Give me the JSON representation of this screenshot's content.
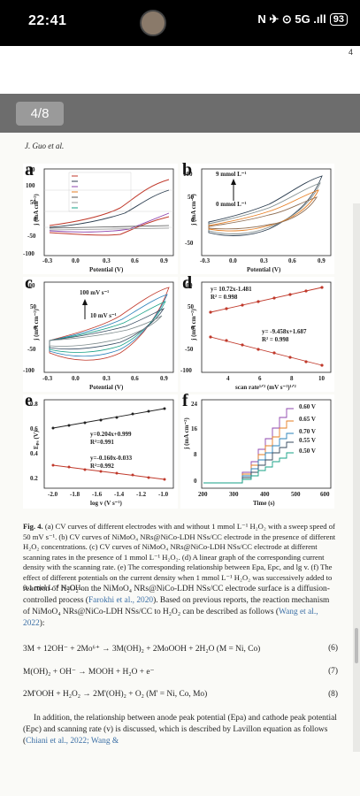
{
  "status": {
    "time": "22:41",
    "icons": "N ✈ ⊙ 5G .ıll",
    "battery": "93"
  },
  "viewer": {
    "corner": "4",
    "page_counter": "4/8"
  },
  "running_head": "J. Guo et al.",
  "panels": {
    "a": {
      "label": "a",
      "xlabel": "Potential (V)",
      "ylabel": "j (mA cm⁻²)",
      "yticks": [
        "150",
        "100",
        "50",
        "0",
        "-50",
        "-100"
      ],
      "xticks": [
        "-0.3",
        "0.0",
        "0.3",
        "0.6",
        "0.9"
      ]
    },
    "b": {
      "label": "b",
      "xlabel": "Potential (V)",
      "ylabel": "j (mA cm⁻²)",
      "yticks": [
        "100",
        "50",
        "0",
        "-50"
      ],
      "xticks": [
        "-0.3",
        "0.0",
        "0.3",
        "0.6",
        "0.9"
      ],
      "ann1": "9 mmol L⁻¹",
      "ann2": "0 mmol L⁻¹"
    },
    "c": {
      "label": "c",
      "xlabel": "Potential (V)",
      "ylabel": "j (mA cm⁻²)",
      "yticks": [
        "100",
        "50",
        "0",
        "-50",
        "-100"
      ],
      "xticks": [
        "-0.3",
        "0.0",
        "0.3",
        "0.6",
        "0.9"
      ],
      "ann1": "100 mV s⁻¹",
      "ann2": "10 mV s⁻¹"
    },
    "d": {
      "label": "d",
      "xlabel": "scan rate¹ᐟ² (mV s⁻¹)¹ᐟ²",
      "ylabel": "j (mA cm⁻²)",
      "yticks": [
        "100",
        "50",
        "0",
        "-50",
        "-100"
      ],
      "xticks": [
        "4",
        "6",
        "8",
        "10"
      ],
      "eq1": "y= 10.72x-1.481",
      "r1": "R² = 0.998",
      "eq2": "y= -9.458x+1.687",
      "r2": "R² = 0.998"
    },
    "e": {
      "label": "e",
      "xlabel": "log v (V s⁻¹)",
      "ylabel": "Eₚₐ (V)",
      "yticks": [
        "0.8",
        "0.6",
        "0.4",
        "0.2"
      ],
      "xticks": [
        "-2.0",
        "-1.8",
        "-1.6",
        "-1.4",
        "-1.2",
        "-1.0"
      ],
      "eq1": "y=0.204x+0.999",
      "r1": "R²=0.991",
      "eq2": "y=-0.160x-0.033",
      "r2": "R²=0.992"
    },
    "f": {
      "label": "f",
      "xlabel": "Time (s)",
      "ylabel": "j (mA cm⁻²)",
      "yticks": [
        "24",
        "16",
        "8",
        "0"
      ],
      "xticks": [
        "200",
        "300",
        "400",
        "500",
        "600"
      ],
      "legend": [
        "0.60 V",
        "0.65 V",
        "0.70 V",
        "0.55 V",
        "0.50 V"
      ]
    }
  },
  "caption": {
    "lead": "Fig. 4.",
    "text": " (a) CV curves of different electrodes with and without 1 mmol L⁻¹ H₂O₂ with a sweep speed of 50 mV s⁻¹. (b) CV curves of NiMoO₄ NRs@NiCo-LDH NSs/CC electrode in the presence of different H₂O₂ concentrations. (c) CV curves of NiMoO₄ NRs@NiCo-LDH NSs/CC electrode at different scanning rates in the presence of 1 mmol L⁻¹ H₂O₂. (d) A linear graph of the corresponding current density with the scanning rate. (e) The corresponding relationship between Epa, Epc, and lg v. (f) The effect of different potentials on the current density when 1 mmol L⁻¹ H₂O₂ was successively added to 0.1 mol L⁻¹ NaOH."
  },
  "body": {
    "p1a": "reaction of H₂O₂ on the NiMoO₄ NRs@NiCo-LDH NSs/CC electrode surface is a diffusion-controlled process (",
    "p1link": "Farokhi et al., 2020",
    "p1b": "). Based on previous reports, the reaction mechanism of NiMoO₄ NRs@NiCo-LDH NSs/CC to H₂O₂ can be described as follows (",
    "p1link2": "Wang et al., 2022",
    "p1c": "):",
    "eq6": "3M + 12OH⁻ + 2Mo⁶⁺ → 3M(OH)₂ + 2MoOOH + 2H₂O (M = Ni, Co)",
    "eq6num": "(6)",
    "eq7": "M(OH)₂ + OH⁻ → MOOH + H₂O + e⁻",
    "eq7num": "(7)",
    "eq8": "2M'OOH + H₂O₂ → 2M'(OH)₂ + O₂ (M' = Ni, Co, Mo)",
    "eq8num": "(8)",
    "p2a": "In addition, the relationship between anode peak potential (Epa) and cathode peak potential (Epc) and scanning rate (v) is discussed, which is described by Lavillon equation as follows (",
    "p2link": "Chiani et al., 2022; Wang &"
  }
}
